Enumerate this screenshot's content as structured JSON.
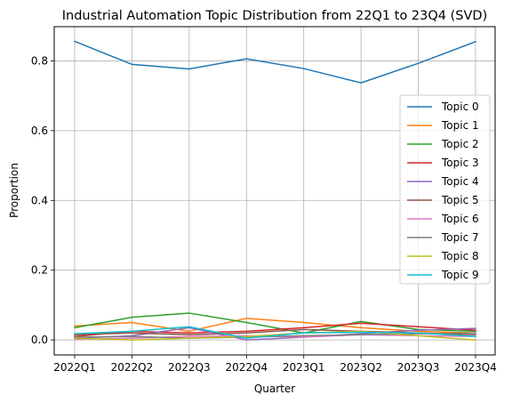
{
  "chart_data": {
    "type": "line",
    "title": "Industrial Automation Topic Distribution from 22Q1 to 23Q4 (SVD)",
    "xlabel": "Quarter",
    "ylabel": "Proportion",
    "categories": [
      "2022Q1",
      "2022Q2",
      "2022Q3",
      "2022Q4",
      "2023Q1",
      "2023Q2",
      "2023Q3",
      "2023Q4"
    ],
    "ylim": [
      -0.043,
      0.898
    ],
    "yticks": [
      "0.0",
      "0.2",
      "0.4",
      "0.6",
      "0.8"
    ],
    "grid": true,
    "legend_position": "right",
    "series": [
      {
        "name": "Topic 0",
        "color": "#1f77b4",
        "values": [
          0.856,
          0.79,
          0.777,
          0.806,
          0.778,
          0.737,
          0.793,
          0.855
        ]
      },
      {
        "name": "Topic 1",
        "color": "#ff7f0e",
        "values": [
          0.04,
          0.05,
          0.025,
          0.062,
          0.05,
          0.035,
          0.025,
          0.02
        ]
      },
      {
        "name": "Topic 2",
        "color": "#2ca02c",
        "values": [
          0.035,
          0.065,
          0.077,
          0.05,
          0.02,
          0.053,
          0.03,
          0.025
        ]
      },
      {
        "name": "Topic 3",
        "color": "#d62728",
        "values": [
          0.01,
          0.025,
          0.02,
          0.025,
          0.035,
          0.048,
          0.038,
          0.028
        ]
      },
      {
        "name": "Topic 4",
        "color": "#9467bd",
        "values": [
          0.005,
          0.012,
          0.035,
          0.0,
          0.008,
          0.018,
          0.028,
          0.033
        ]
      },
      {
        "name": "Topic 5",
        "color": "#8c564b",
        "values": [
          0.015,
          0.02,
          0.015,
          0.02,
          0.03,
          0.025,
          0.02,
          0.015
        ]
      },
      {
        "name": "Topic 6",
        "color": "#e377c2",
        "values": [
          0.002,
          0.005,
          0.01,
          0.012,
          0.008,
          0.015,
          0.012,
          0.01
        ]
      },
      {
        "name": "Topic 7",
        "color": "#7f7f7f",
        "values": [
          0.008,
          0.01,
          0.005,
          0.008,
          0.012,
          0.015,
          0.018,
          0.02
        ]
      },
      {
        "name": "Topic 8",
        "color": "#bcbd22",
        "values": [
          0.005,
          0.0,
          0.005,
          0.01,
          0.02,
          0.025,
          0.012,
          0.0
        ]
      },
      {
        "name": "Topic 9",
        "color": "#17becf",
        "values": [
          0.018,
          0.025,
          0.038,
          0.005,
          0.02,
          0.022,
          0.02,
          0.01
        ]
      }
    ]
  }
}
